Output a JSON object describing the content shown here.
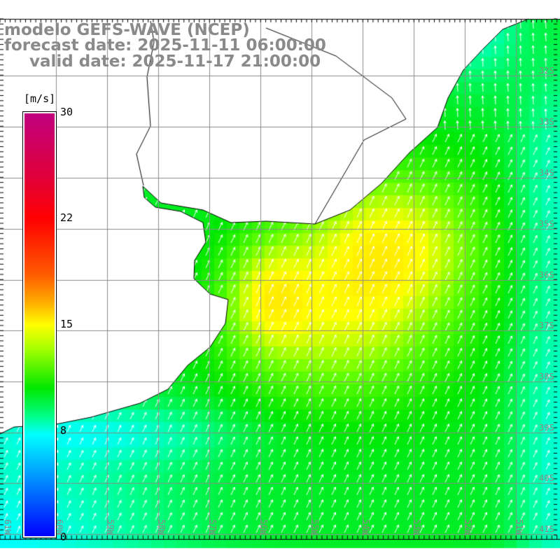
{
  "title": {
    "line1": "modelo GEFS-WAVE (NCEP)",
    "line2": "forecast date: 2025-11-11 06:00:00",
    "line3": "valid date: 2025-11-17 21:00:00"
  },
  "colorbar": {
    "unit": "[m/s]",
    "ticks": [
      "30",
      "22",
      "15",
      "8",
      "0"
    ],
    "tick_values": [
      30,
      22,
      15,
      8,
      0
    ],
    "colors": {
      "max": "#c0007f",
      "mid": "#ffff00",
      "low": "#00ffff",
      "min": "#0000ff"
    }
  },
  "axes": {
    "lon_labels": [
      "61W",
      "60W",
      "59W",
      "58W",
      "57W",
      "56W",
      "55W",
      "54W",
      "53W",
      "52W",
      "51W"
    ],
    "lat_labels": [
      "32S",
      "33S",
      "34S",
      "35S",
      "36S",
      "37S",
      "38S",
      "39S",
      "40S",
      "41S"
    ]
  },
  "field": {
    "variable": "wind speed",
    "direction": "SW to NE",
    "land_color": "#ffffff"
  }
}
